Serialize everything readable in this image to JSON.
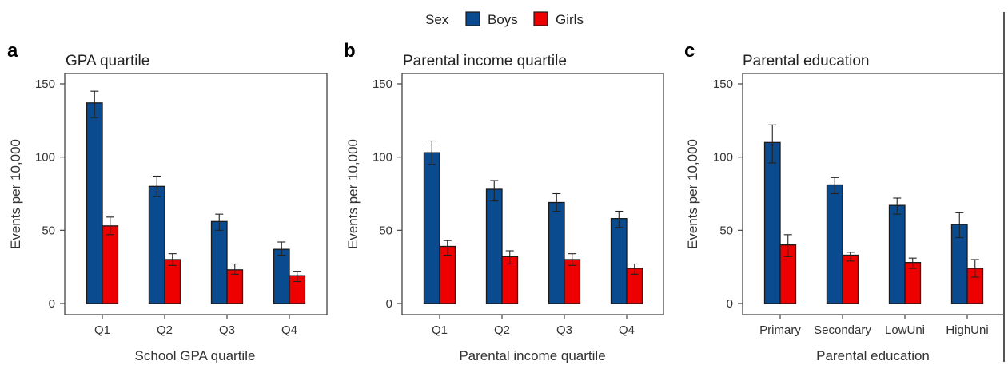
{
  "colors": {
    "boys": "#0A4A8E",
    "girls": "#EE0000",
    "frame": "#555555",
    "edge": "#1a1a1a"
  },
  "legend": {
    "title": "Sex",
    "items": [
      {
        "label": "Boys",
        "color": "#0A4A8E"
      },
      {
        "label": "Girls",
        "color": "#EE0000"
      }
    ]
  },
  "chart_data": [
    {
      "type": "bar",
      "panel": "a",
      "title": "GPA quartile",
      "xlabel": "School GPA quartile",
      "ylabel": "Events per 10,000",
      "ylim": [
        0,
        150
      ],
      "yticks": [
        0,
        50,
        100,
        150
      ],
      "categories": [
        "Q1",
        "Q2",
        "Q3",
        "Q4"
      ],
      "series": [
        {
          "name": "Boys",
          "values": [
            137,
            80,
            56,
            37
          ],
          "error_low": [
            127,
            73,
            50,
            33
          ],
          "error_high": [
            145,
            87,
            61,
            42
          ]
        },
        {
          "name": "Girls",
          "values": [
            53,
            30,
            23,
            19
          ],
          "error_low": [
            47,
            26,
            20,
            15
          ],
          "error_high": [
            59,
            34,
            27,
            22
          ]
        }
      ],
      "grid": false,
      "legend": "top-center"
    },
    {
      "type": "bar",
      "panel": "b",
      "title": "Parental income quartile",
      "xlabel": "Parental income quartile",
      "ylabel": "Events per 10,000",
      "ylim": [
        0,
        150
      ],
      "yticks": [
        0,
        50,
        100,
        150
      ],
      "categories": [
        "Q1",
        "Q2",
        "Q3",
        "Q4"
      ],
      "series": [
        {
          "name": "Boys",
          "values": [
            103,
            78,
            69,
            58
          ],
          "error_low": [
            95,
            70,
            63,
            52
          ],
          "error_high": [
            111,
            84,
            75,
            63
          ]
        },
        {
          "name": "Girls",
          "values": [
            39,
            32,
            30,
            24
          ],
          "error_low": [
            33,
            27,
            26,
            20
          ],
          "error_high": [
            43,
            36,
            34,
            27
          ]
        }
      ],
      "grid": false
    },
    {
      "type": "bar",
      "panel": "c",
      "title": "Parental education",
      "xlabel": "Parental education",
      "ylabel": "Events per 10,000",
      "ylim": [
        0,
        150
      ],
      "yticks": [
        0,
        50,
        100,
        150
      ],
      "categories": [
        "Primary",
        "Secondary",
        "LowUni",
        "HighUni"
      ],
      "series": [
        {
          "name": "Boys",
          "values": [
            110,
            81,
            67,
            54
          ],
          "error_low": [
            96,
            75,
            61,
            45
          ],
          "error_high": [
            122,
            86,
            72,
            62
          ]
        },
        {
          "name": "Girls",
          "values": [
            40,
            33,
            28,
            24
          ],
          "error_low": [
            32,
            29,
            24,
            18
          ],
          "error_high": [
            47,
            35,
            31,
            30
          ]
        }
      ],
      "grid": false
    }
  ]
}
